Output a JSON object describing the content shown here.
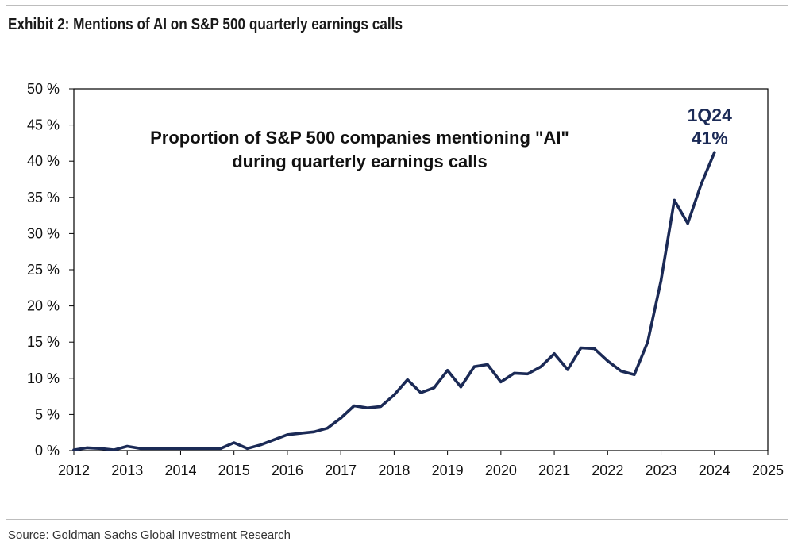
{
  "header": {
    "title": "Exhibit 2: Mentions of AI on S&P 500 quarterly earnings calls"
  },
  "footer": {
    "source": "Source: Goldman Sachs Global Investment Research"
  },
  "colors": {
    "line": "#1b2a56",
    "axis": "#000000",
    "callout": "#1b2a56"
  },
  "chart_data": {
    "type": "line",
    "title": "",
    "xlabel": "",
    "ylabel": "",
    "annotation_lines": [
      "Proportion of S&P 500 companies mentioning \"AI\"",
      "during quarterly earnings calls"
    ],
    "callout": {
      "label": "1Q24",
      "value_label": "41%",
      "x": 2024,
      "y": 41
    },
    "xlim": [
      2012,
      2025
    ],
    "ylim": [
      0,
      50
    ],
    "x_ticks": [
      2012,
      2013,
      2014,
      2015,
      2016,
      2017,
      2018,
      2019,
      2020,
      2021,
      2022,
      2023,
      2024,
      2025
    ],
    "x_tick_labels": [
      "2012",
      "2013",
      "2014",
      "2015",
      "2016",
      "2017",
      "2018",
      "2019",
      "2020",
      "2021",
      "2022",
      "2023",
      "2024",
      "2025"
    ],
    "y_ticks": [
      0,
      5,
      10,
      15,
      20,
      25,
      30,
      35,
      40,
      45,
      50
    ],
    "y_tick_labels": [
      "0 %",
      "5 %",
      "10 %",
      "15 %",
      "20 %",
      "25 %",
      "30 %",
      "35 %",
      "40 %",
      "45 %",
      "50 %"
    ],
    "grid": false,
    "series": [
      {
        "name": "",
        "x": [
          2012.0,
          2012.25,
          2012.5,
          2012.75,
          2013.0,
          2013.25,
          2013.5,
          2013.75,
          2014.0,
          2014.25,
          2014.5,
          2014.75,
          2015.0,
          2015.25,
          2015.5,
          2015.75,
          2016.0,
          2016.25,
          2016.5,
          2016.75,
          2017.0,
          2017.25,
          2017.5,
          2017.75,
          2018.0,
          2018.25,
          2018.5,
          2018.75,
          2019.0,
          2019.25,
          2019.5,
          2019.75,
          2020.0,
          2020.25,
          2020.5,
          2020.75,
          2021.0,
          2021.25,
          2021.5,
          2021.75,
          2022.0,
          2022.25,
          2022.5,
          2022.75,
          2023.0,
          2023.25,
          2023.5,
          2023.75,
          2024.0
        ],
        "values": [
          0.1,
          0.4,
          0.3,
          0.1,
          0.6,
          0.3,
          0.3,
          0.3,
          0.3,
          0.3,
          0.3,
          0.3,
          1.1,
          0.3,
          0.8,
          1.5,
          2.2,
          2.4,
          2.6,
          3.1,
          4.5,
          6.2,
          5.9,
          6.1,
          7.7,
          9.8,
          8.0,
          8.7,
          11.1,
          8.8,
          11.6,
          11.9,
          9.5,
          10.7,
          10.6,
          11.6,
          13.4,
          11.2,
          14.2,
          14.1,
          12.4,
          11.0,
          10.5,
          15.0,
          23.5,
          34.6,
          31.4,
          36.8,
          41.2
        ]
      }
    ]
  }
}
